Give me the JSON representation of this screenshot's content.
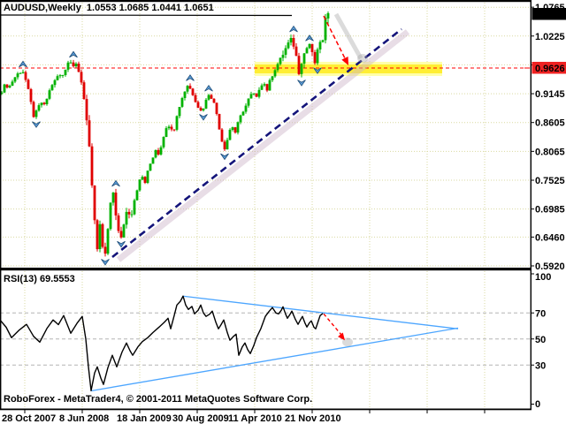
{
  "header": {
    "title": "AUDUSD,Weekly  1.0553 1.0685 1.0441 1.0651"
  },
  "rsi_header": {
    "label": "RSI(13) 69.5553"
  },
  "footer": {
    "copyright": "RoboForex - MetaTrader4, © 2001-2011 MetaQuotes Software Corp."
  },
  "colors": {
    "up": "#00B200",
    "down": "#E00000",
    "fractal": "#5b9bd5",
    "fractal_edge": "#1f4e79",
    "trend": "#14147a",
    "trend_shadow": "rgba(205,180,200,0.45)",
    "signal_red": "#FF0000",
    "arrow_shadow": "rgba(160,160,160,0.38)",
    "zone_outer": "#FFFFAA",
    "zone_inner": "#FFEE33",
    "grid": "#d9d9a0",
    "rsi_level": "#b4b4b4",
    "price_label_bg": "#000000",
    "level_label_bg": "#ee2222",
    "label_text": "#ffffff",
    "rsi_line": "#000000",
    "triangle_blue": "#4da6ff"
  },
  "chart_data": [
    {
      "type": "candlestick",
      "symbol": "AUDUSD",
      "timeframe": "Weekly",
      "last_bar": {
        "open": 1.0553,
        "high": 1.0685,
        "low": 1.0441,
        "close": 1.0651
      },
      "current_price_label": "1.0651",
      "support_level": 0.9626,
      "support_level_label": "0.9626",
      "price_ticks": [
        "1.0765",
        "1.0225",
        "0.9685",
        "0.9145",
        "0.8605",
        "0.8065",
        "0.7525",
        "0.6985",
        "0.6460",
        "0.5920"
      ],
      "x_dates": [
        "28 Oct 2007",
        "8 Jun 2008",
        "18 Jan 2009",
        "30 Aug 2009",
        "11 Apr 2010",
        "21 Nov 2010"
      ],
      "date_label_x": [
        2,
        67,
        132,
        195,
        258,
        322
      ],
      "close_path": [
        [
          2,
          0.92
        ],
        [
          6,
          0.932
        ],
        [
          10,
          0.926
        ],
        [
          14,
          0.938
        ],
        [
          18,
          0.948
        ],
        [
          22,
          0.955
        ],
        [
          26,
          0.956
        ],
        [
          30,
          0.935
        ],
        [
          34,
          0.905
        ],
        [
          38,
          0.873
        ],
        [
          42,
          0.882
        ],
        [
          46,
          0.9
        ],
        [
          50,
          0.892
        ],
        [
          54,
          0.91
        ],
        [
          58,
          0.93
        ],
        [
          62,
          0.938
        ],
        [
          66,
          0.95
        ],
        [
          70,
          0.946
        ],
        [
          74,
          0.962
        ],
        [
          78,
          0.978
        ],
        [
          82,
          0.968
        ],
        [
          86,
          0.973
        ],
        [
          90,
          0.95
        ],
        [
          94,
          0.915
        ],
        [
          98,
          0.868
        ],
        [
          102,
          0.8
        ],
        [
          105,
          0.72
        ],
        [
          108,
          0.655
        ],
        [
          110,
          0.618
        ],
        [
          113,
          0.665
        ],
        [
          116,
          0.628
        ],
        [
          119,
          0.612
        ],
        [
          122,
          0.66
        ],
        [
          125,
          0.705
        ],
        [
          128,
          0.73
        ],
        [
          131,
          0.69
        ],
        [
          134,
          0.655
        ],
        [
          137,
          0.642
        ],
        [
          140,
          0.672
        ],
        [
          144,
          0.7
        ],
        [
          148,
          0.686
        ],
        [
          152,
          0.716
        ],
        [
          156,
          0.742
        ],
        [
          160,
          0.762
        ],
        [
          164,
          0.748
        ],
        [
          168,
          0.775
        ],
        [
          172,
          0.792
        ],
        [
          176,
          0.81
        ],
        [
          180,
          0.8
        ],
        [
          184,
          0.832
        ],
        [
          188,
          0.848
        ],
        [
          192,
          0.858
        ],
        [
          196,
          0.842
        ],
        [
          200,
          0.872
        ],
        [
          204,
          0.898
        ],
        [
          208,
          0.916
        ],
        [
          212,
          0.93
        ],
        [
          216,
          0.922
        ],
        [
          220,
          0.906
        ],
        [
          224,
          0.89
        ],
        [
          228,
          0.88
        ],
        [
          232,
          0.898
        ],
        [
          236,
          0.914
        ],
        [
          240,
          0.906
        ],
        [
          244,
          0.886
        ],
        [
          248,
          0.85
        ],
        [
          252,
          0.818
        ],
        [
          255,
          0.81
        ],
        [
          258,
          0.838
        ],
        [
          262,
          0.856
        ],
        [
          266,
          0.842
        ],
        [
          270,
          0.864
        ],
        [
          274,
          0.88
        ],
        [
          278,
          0.892
        ],
        [
          282,
          0.908
        ],
        [
          286,
          0.916
        ],
        [
          290,
          0.906
        ],
        [
          294,
          0.93
        ],
        [
          298,
          0.936
        ],
        [
          302,
          0.922
        ],
        [
          306,
          0.942
        ],
        [
          310,
          0.958
        ],
        [
          314,
          0.97
        ],
        [
          318,
          0.982
        ],
        [
          322,
          0.996
        ],
        [
          326,
          1.008
        ],
        [
          330,
          1.016
        ],
        [
          334,
          0.996
        ],
        [
          336,
          0.972
        ],
        [
          338,
          0.956
        ],
        [
          342,
          0.982
        ],
        [
          346,
          0.998
        ],
        [
          350,
          1.008
        ],
        [
          353,
          0.988
        ],
        [
          356,
          0.972
        ],
        [
          359,
          0.996
        ],
        [
          362,
          1.012
        ],
        [
          364,
          0.998
        ],
        [
          366,
          1.03
        ],
        [
          368,
          1.0553
        ]
      ],
      "trendline": {
        "from": [
          127,
          0.6086
        ],
        "to": [
          454,
          1.0354
        ]
      },
      "down_arrow": {
        "from": [
          366,
          1.0602
        ],
        "to": [
          394,
          0.9676
        ]
      },
      "zone": {
        "x": [
          288,
          500
        ],
        "price": [
          0.9742,
          0.9477
        ]
      }
    },
    {
      "type": "line",
      "indicator": "RSI",
      "period": 13,
      "value": 69.5553,
      "y_ticks": [
        100,
        70,
        50,
        30,
        0
      ],
      "levels": [
        70,
        50,
        30
      ],
      "points": [
        [
          0,
          64.6
        ],
        [
          7,
          59
        ],
        [
          13,
          51
        ],
        [
          22,
          57
        ],
        [
          30,
          61.2
        ],
        [
          38,
          52
        ],
        [
          45,
          47.6
        ],
        [
          53,
          58
        ],
        [
          60,
          64.6
        ],
        [
          66,
          61
        ],
        [
          72,
          68
        ],
        [
          80,
          54.4
        ],
        [
          87,
          62
        ],
        [
          93,
          67.3
        ],
        [
          97,
          50
        ],
        [
          100,
          28.6
        ],
        [
          103,
          10.3
        ],
        [
          107,
          24
        ],
        [
          110,
          28.6
        ],
        [
          114,
          20
        ],
        [
          117,
          15.1
        ],
        [
          122,
          28
        ],
        [
          127,
          37.5
        ],
        [
          132,
          28.6
        ],
        [
          138,
          40
        ],
        [
          143,
          46.9
        ],
        [
          147,
          41
        ],
        [
          150,
          37.5
        ],
        [
          156,
          44
        ],
        [
          161,
          48
        ],
        [
          167,
          51
        ],
        [
          173,
          55
        ],
        [
          180,
          59.2
        ],
        [
          186,
          63
        ],
        [
          190,
          65.9
        ],
        [
          193,
          57.8
        ],
        [
          197,
          68
        ],
        [
          200,
          76.1
        ],
        [
          204,
          79
        ],
        [
          207,
          82.9
        ],
        [
          210,
          76
        ],
        [
          213,
          72.7
        ],
        [
          217,
          75
        ],
        [
          220,
          69.3
        ],
        [
          224,
          72
        ],
        [
          227,
          76.1
        ],
        [
          230,
          70
        ],
        [
          233,
          67.3
        ],
        [
          237,
          69
        ],
        [
          240,
          71.4
        ],
        [
          244,
          63
        ],
        [
          247,
          57.8
        ],
        [
          250,
          61
        ],
        [
          253,
          64.6
        ],
        [
          257,
          55
        ],
        [
          260,
          49
        ],
        [
          264,
          52
        ],
        [
          267,
          53.7
        ],
        [
          270,
          37.5
        ],
        [
          274,
          44
        ],
        [
          277,
          46.9
        ],
        [
          280,
          42
        ],
        [
          283,
          38.8
        ],
        [
          287,
          45
        ],
        [
          290,
          51
        ],
        [
          295,
          58
        ],
        [
          300,
          67.3
        ],
        [
          304,
          71
        ],
        [
          308,
          74.1
        ],
        [
          312,
          70
        ],
        [
          315,
          69.3
        ],
        [
          318,
          72
        ],
        [
          320,
          74.7
        ],
        [
          323,
          69
        ],
        [
          325,
          65.9
        ],
        [
          328,
          69
        ],
        [
          330,
          71.4
        ],
        [
          334,
          65
        ],
        [
          337,
          61.2
        ],
        [
          340,
          65
        ],
        [
          342,
          67.3
        ],
        [
          345,
          62
        ],
        [
          347,
          59.2
        ],
        [
          350,
          62.5
        ],
        [
          352,
          63.9
        ],
        [
          355,
          59
        ],
        [
          357,
          57.8
        ],
        [
          360,
          64
        ],
        [
          362,
          68
        ],
        [
          365,
          69.5553
        ]
      ],
      "triangle_upper": [
        [
          207,
          82.9
        ],
        [
          518,
          57.8
        ]
      ],
      "triangle_lower": [
        [
          103,
          10.2
        ],
        [
          518,
          58.4
        ]
      ],
      "down_arrow": {
        "from": [
          366,
          69.3
        ],
        "to": [
          390,
          49
        ]
      }
    }
  ]
}
